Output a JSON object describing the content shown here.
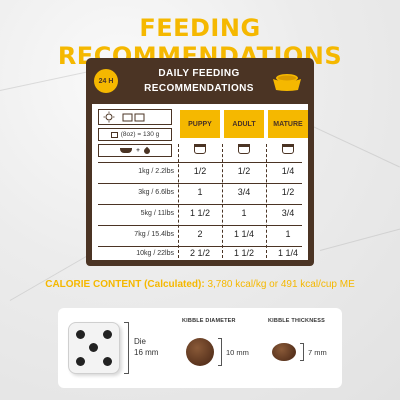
{
  "title": "FEEDING RECOMMENDATIONS",
  "card": {
    "badge": "24 H",
    "header_line1": "DAILY FEEDING",
    "header_line2": "RECOMMENDATIONS",
    "columns": [
      "PUPPY",
      "ADULT",
      "MATURE"
    ],
    "legend_conversion": "(8oz) = 130 g",
    "rows": [
      {
        "weight": "1kg / 2.2lbs",
        "values": [
          "1/2",
          "1/2",
          "1/4"
        ]
      },
      {
        "weight": "3kg / 6.6lbs",
        "values": [
          "1",
          "3/4",
          "1/2"
        ]
      },
      {
        "weight": "5kg / 11lbs",
        "values": [
          "1 1/2",
          "1",
          "3/4"
        ]
      },
      {
        "weight": "7kg / 15.4lbs",
        "values": [
          "2",
          "1 1/4",
          "1"
        ]
      },
      {
        "weight": "10kg / 22lbs",
        "values": [
          "2 1/2",
          "1 1/2",
          "1 1/4"
        ]
      }
    ]
  },
  "calorie": {
    "label": "CALORIE CONTENT (Calculated):",
    "values": "3,780 kcal/kg or 491 kcal/cup ME"
  },
  "sizes": {
    "die_label_1": "Die",
    "die_label_2": "16 mm",
    "diameter_title": "KIBBLE DIAMETER",
    "diameter_value": "10 mm",
    "thickness_title": "KIBBLE THICKNESS",
    "thickness_value": "7 mm"
  },
  "colors": {
    "accent": "#f5b800",
    "brown": "#4b3424"
  }
}
